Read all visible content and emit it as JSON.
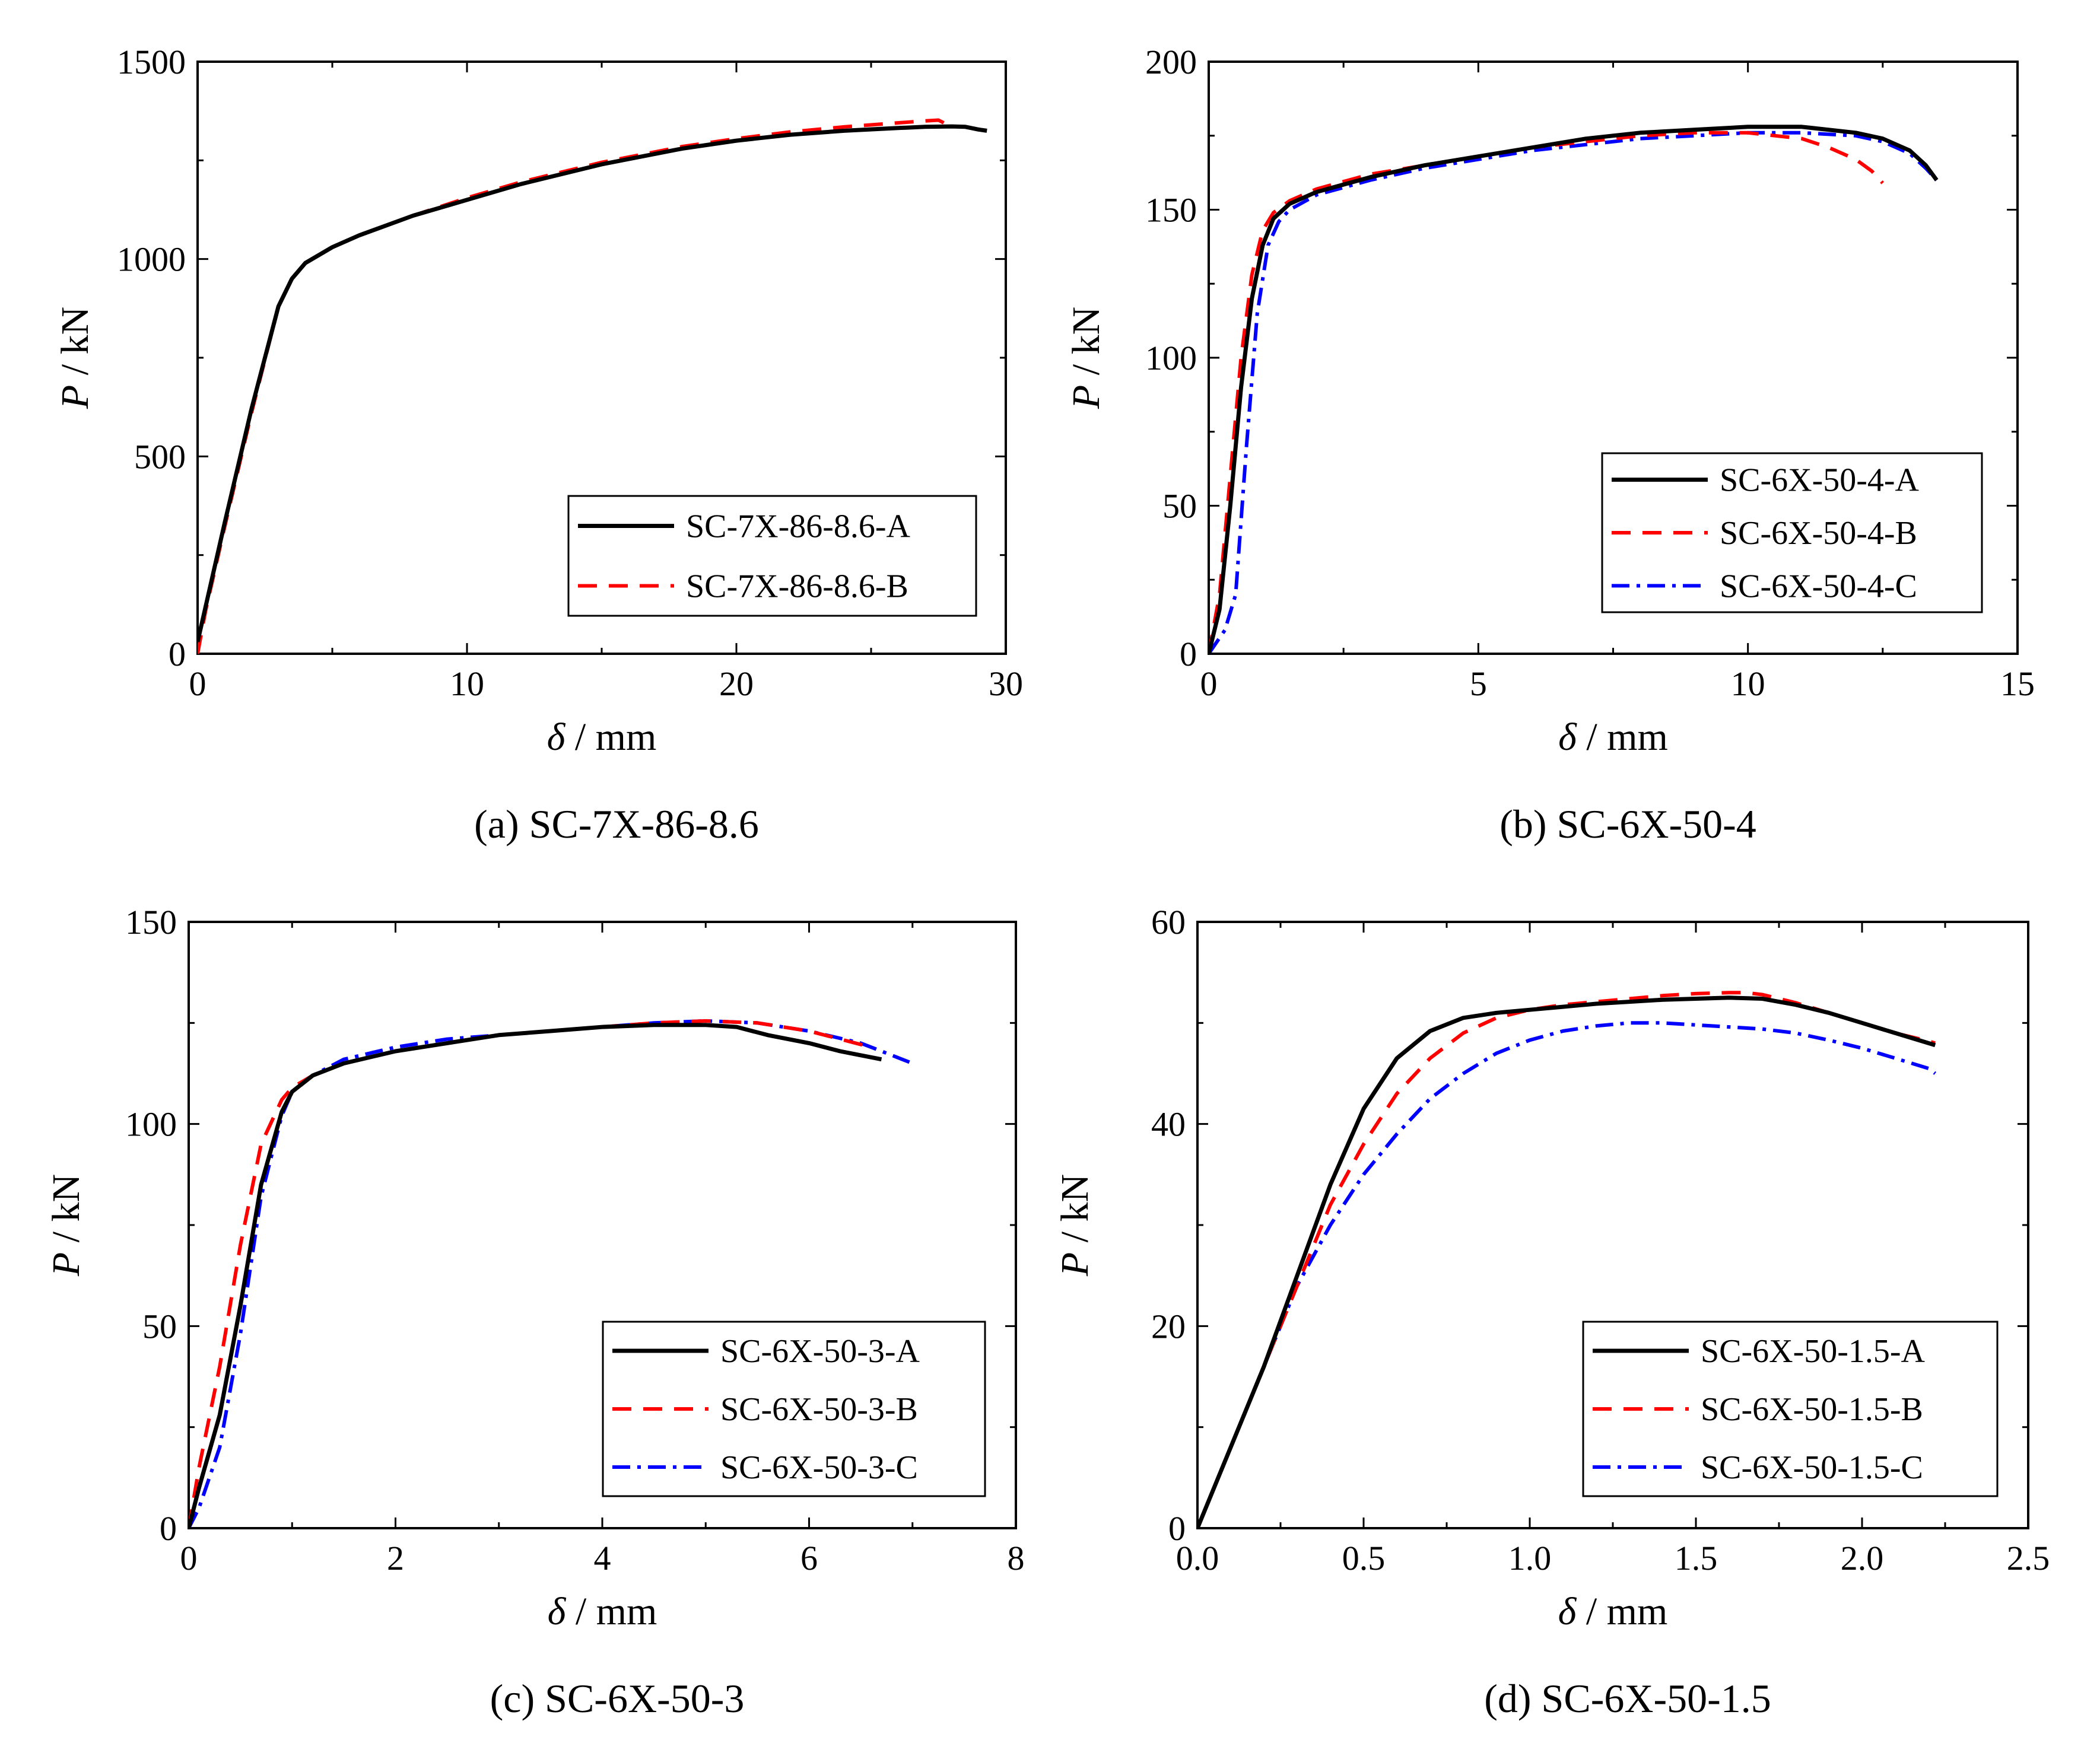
{
  "chart_data": [
    {
      "type": "line",
      "title": "",
      "caption": "(a) SC-7X-86-8.6",
      "xlabel_sym": "δ",
      "xlabel_unit": "mm",
      "ylabel_sym": "P",
      "ylabel_unit": "kN",
      "xlim": [
        0,
        30
      ],
      "ylim": [
        0,
        1500
      ],
      "xticks": [
        "0",
        "10",
        "20",
        "30"
      ],
      "yticks": [
        "0",
        "500",
        "1000",
        "1500"
      ],
      "grid": false,
      "legend_position": "bottom-right",
      "series": [
        {
          "name": "SC-7X-86-8.6-A",
          "color": "#000000",
          "dash": "solid",
          "x": [
            0,
            0.3,
            1,
            2,
            3,
            3.5,
            4,
            5,
            6,
            8,
            10,
            12,
            15,
            18,
            20,
            22,
            24,
            26,
            27,
            28,
            28.5,
            29,
            29.3
          ],
          "y": [
            30,
            120,
            330,
            620,
            880,
            950,
            990,
            1030,
            1060,
            1110,
            1150,
            1190,
            1240,
            1280,
            1300,
            1315,
            1325,
            1332,
            1335,
            1336,
            1335,
            1328,
            1325
          ]
        },
        {
          "name": "SC-7X-86-8.6-B",
          "color": "#ff0000",
          "dash": "dashed",
          "x": [
            0,
            0.3,
            1,
            2,
            3,
            3.5,
            4,
            5,
            6,
            8,
            10,
            12,
            15,
            18,
            20,
            22,
            24,
            26,
            27,
            27.5,
            27.7,
            27.8
          ],
          "y": [
            0,
            110,
            320,
            610,
            880,
            950,
            990,
            1030,
            1060,
            1110,
            1155,
            1195,
            1245,
            1285,
            1305,
            1322,
            1335,
            1345,
            1350,
            1352,
            1345,
            1340
          ]
        }
      ]
    },
    {
      "type": "line",
      "title": "",
      "caption": "(b) SC-6X-50-4",
      "xlabel_sym": "δ",
      "xlabel_unit": "mm",
      "ylabel_sym": "P",
      "ylabel_unit": "kN",
      "xlim": [
        0,
        15
      ],
      "ylim": [
        0,
        200
      ],
      "xticks": [
        "0",
        "5",
        "10",
        "15"
      ],
      "yticks": [
        "0",
        "50",
        "100",
        "150",
        "200"
      ],
      "grid": false,
      "legend_position": "bottom-right",
      "series": [
        {
          "name": "SC-6X-50-4-A",
          "color": "#000000",
          "dash": "solid",
          "x": [
            0,
            0.2,
            0.4,
            0.6,
            0.8,
            1.0,
            1.2,
            1.5,
            2,
            3,
            4,
            5,
            6,
            7,
            8,
            9,
            10,
            11,
            12,
            12.5,
            13,
            13.3,
            13.5
          ],
          "y": [
            0,
            15,
            50,
            90,
            120,
            138,
            147,
            152,
            156,
            161,
            165,
            168,
            171,
            174,
            176,
            177,
            178,
            178,
            176,
            174,
            170,
            165,
            160
          ]
        },
        {
          "name": "SC-6X-50-4-B",
          "color": "#ff0000",
          "dash": "dashed",
          "x": [
            0,
            0.2,
            0.4,
            0.6,
            0.8,
            1.0,
            1.2,
            1.5,
            2,
            3,
            4,
            5,
            6,
            7,
            8,
            9,
            10,
            11,
            11.5,
            12,
            12.3,
            12.5
          ],
          "y": [
            0,
            20,
            60,
            100,
            128,
            143,
            149,
            153,
            157,
            162,
            165,
            168,
            171,
            173,
            175,
            176,
            176,
            174,
            171,
            167,
            163,
            159
          ]
        },
        {
          "name": "SC-6X-50-4-C",
          "color": "#0000ff",
          "dash": "dashdot",
          "x": [
            0,
            0.3,
            0.5,
            0.7,
            0.9,
            1.1,
            1.3,
            1.5,
            2,
            3,
            4,
            5,
            6,
            7,
            8,
            9,
            10,
            11,
            12,
            12.5,
            13,
            13.3,
            13.5
          ],
          "y": [
            0,
            8,
            20,
            70,
            115,
            138,
            146,
            150,
            155,
            160,
            164,
            167,
            170,
            172,
            174,
            175,
            176,
            176,
            175,
            173,
            169,
            164,
            160
          ]
        }
      ]
    },
    {
      "type": "line",
      "title": "",
      "caption": "(c) SC-6X-50-3",
      "xlabel_sym": "δ",
      "xlabel_unit": "mm",
      "ylabel_sym": "P",
      "ylabel_unit": "kN",
      "xlim": [
        0,
        8
      ],
      "ylim": [
        0,
        150
      ],
      "xticks": [
        "0",
        "2",
        "4",
        "6",
        "8"
      ],
      "yticks": [
        "0",
        "50",
        "100",
        "150"
      ],
      "grid": false,
      "legend_position": "bottom-right",
      "series": [
        {
          "name": "SC-6X-50-3-A",
          "color": "#000000",
          "dash": "solid",
          "x": [
            0,
            0.1,
            0.3,
            0.5,
            0.7,
            0.9,
            1.0,
            1.2,
            1.5,
            2,
            2.5,
            3,
            3.5,
            4,
            4.5,
            5,
            5.3,
            5.6,
            6,
            6.3,
            6.7
          ],
          "y": [
            0,
            10,
            28,
            55,
            85,
            103,
            108,
            112,
            115,
            118,
            120,
            122,
            123,
            124,
            124.5,
            124.5,
            124,
            122,
            120,
            118,
            116
          ]
        },
        {
          "name": "SC-6X-50-3-B",
          "color": "#ff0000",
          "dash": "dashed",
          "x": [
            0,
            0.1,
            0.3,
            0.5,
            0.7,
            0.9,
            1.0,
            1.2,
            1.5,
            2,
            2.5,
            3,
            3.5,
            4,
            4.5,
            5,
            5.5,
            6,
            6.3,
            6.6
          ],
          "y": [
            0,
            15,
            40,
            70,
            95,
            106,
            109,
            112,
            115,
            118,
            120,
            122,
            123,
            124,
            125,
            125.5,
            125,
            123,
            121,
            119
          ]
        },
        {
          "name": "SC-6X-50-3-C",
          "color": "#0000ff",
          "dash": "dashdot",
          "x": [
            0,
            0.1,
            0.3,
            0.5,
            0.7,
            0.9,
            1.0,
            1.2,
            1.5,
            2,
            2.5,
            3,
            3.5,
            4,
            4.5,
            5,
            5.5,
            6,
            6.5,
            6.8,
            7.0
          ],
          "y": [
            0,
            5,
            20,
            48,
            82,
            102,
            108,
            112,
            116,
            119,
            121,
            122,
            123,
            124,
            125,
            125.5,
            125,
            123,
            120,
            117,
            115
          ]
        }
      ]
    },
    {
      "type": "line",
      "title": "",
      "caption": "(d) SC-6X-50-1.5",
      "xlabel_sym": "δ",
      "xlabel_unit": "mm",
      "ylabel_sym": "P",
      "ylabel_unit": "kN",
      "xlim": [
        0,
        2.5
      ],
      "ylim": [
        0,
        60
      ],
      "xticks": [
        "0.0",
        "0.5",
        "1.0",
        "1.5",
        "2.0",
        "2.5"
      ],
      "yticks": [
        "0",
        "20",
        "40",
        "60"
      ],
      "grid": false,
      "legend_position": "bottom-right",
      "series": [
        {
          "name": "SC-6X-50-1.5-A",
          "color": "#000000",
          "dash": "solid",
          "x": [
            0,
            0.1,
            0.2,
            0.3,
            0.4,
            0.5,
            0.6,
            0.7,
            0.8,
            0.9,
            1.0,
            1.1,
            1.2,
            1.3,
            1.4,
            1.5,
            1.6,
            1.7,
            1.8,
            1.9,
            2.0,
            2.1,
            2.2,
            2.22
          ],
          "y": [
            0,
            8,
            16,
            25,
            34,
            41.5,
            46.5,
            49.2,
            50.5,
            51,
            51.3,
            51.6,
            51.9,
            52.1,
            52.3,
            52.4,
            52.5,
            52.4,
            51.8,
            51,
            50,
            49,
            48,
            47.8
          ]
        },
        {
          "name": "SC-6X-50-1.5-B",
          "color": "#ff0000",
          "dash": "dashed",
          "x": [
            0,
            0.1,
            0.2,
            0.3,
            0.4,
            0.5,
            0.6,
            0.7,
            0.8,
            0.9,
            1.0,
            1.1,
            1.2,
            1.3,
            1.4,
            1.5,
            1.6,
            1.65,
            1.7,
            1.8,
            1.9,
            2.0,
            2.1,
            2.2,
            2.22
          ],
          "y": [
            0,
            8,
            16,
            24,
            32,
            38,
            43,
            46.5,
            49,
            50.5,
            51.3,
            51.8,
            52.1,
            52.4,
            52.7,
            52.9,
            53,
            53,
            52.8,
            52,
            51,
            50,
            49,
            48.2,
            48
          ]
        },
        {
          "name": "SC-6X-50-1.5-C",
          "color": "#0000ff",
          "dash": "dashdot",
          "x": [
            0,
            0.1,
            0.2,
            0.3,
            0.4,
            0.5,
            0.6,
            0.7,
            0.8,
            0.9,
            1.0,
            1.1,
            1.2,
            1.3,
            1.4,
            1.5,
            1.6,
            1.7,
            1.8,
            1.9,
            2.0,
            2.1,
            2.2,
            2.22
          ],
          "y": [
            0,
            8,
            16,
            24,
            30,
            35,
            39,
            42.5,
            45,
            47,
            48.3,
            49.2,
            49.7,
            50,
            50,
            49.8,
            49.6,
            49.4,
            49,
            48.3,
            47.5,
            46.5,
            45.5,
            45
          ]
        }
      ]
    }
  ]
}
